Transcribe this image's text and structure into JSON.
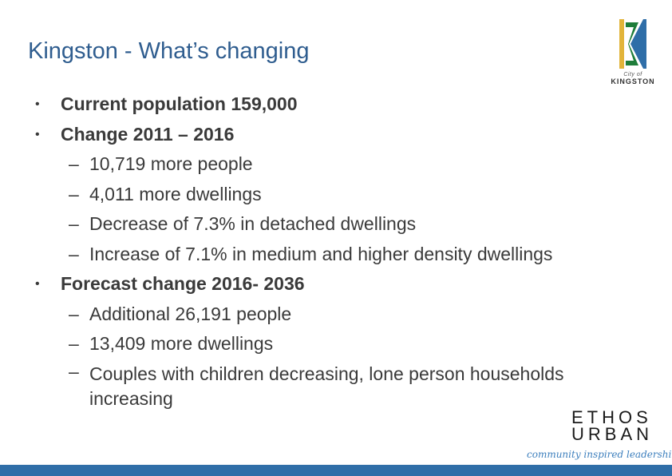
{
  "slide": {
    "title": "Kingston - What’s changing"
  },
  "logo": {
    "small_text": "City of",
    "name": "KINGSTON",
    "colors": [
      "#e2b43a",
      "#2f6ea8",
      "#1e7d3a"
    ]
  },
  "bullets": [
    {
      "text": "Current population 159,000",
      "children": []
    },
    {
      "text": "Change 2011 – 2016",
      "children": [
        "10,719 more people",
        "4,011 more dwellings",
        "Decrease of 7.3% in detached dwellings",
        "Increase of 7.1% in medium and higher density dwellings"
      ]
    },
    {
      "text": "Forecast change 2016- 2036",
      "children": [
        "Additional 26,191 people",
        "13,409 more dwellings",
        "Couples with children decreasing, lone person households increasing"
      ]
    }
  ],
  "markers": {
    "level1": "•",
    "level2": "–"
  },
  "footer": {
    "brand_line1": "ETHOS",
    "brand_line2": "URBAN",
    "tagline": "community inspired leadership",
    "bar_color": "#2f6ea8"
  }
}
